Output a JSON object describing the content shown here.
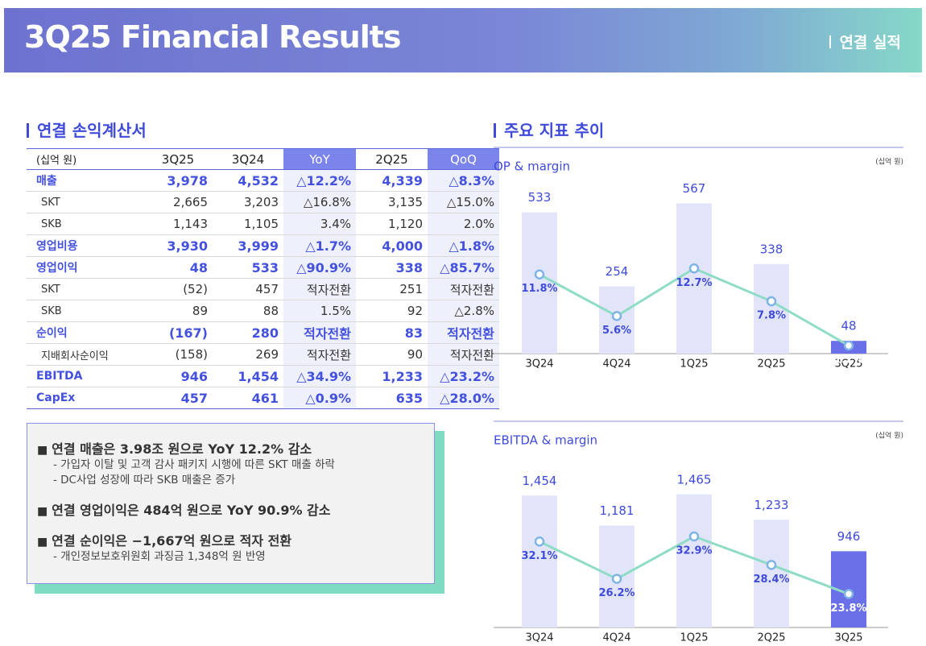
{
  "header": {
    "title": "3Q25 Financial Results",
    "section": "연결 실적"
  },
  "income_statement": {
    "title": "연결 손익계산서",
    "columns": [
      "(십억 원)",
      "3Q25",
      "3Q24",
      "YoY",
      "2Q25",
      "QoQ"
    ],
    "rows": [
      [
        "매출",
        "3,978",
        "4,532",
        "△12.2%",
        "4,339",
        "△8.3%"
      ],
      [
        "SKT",
        "2,665",
        "3,203",
        "△16.8%",
        "3,135",
        "△15.0%"
      ],
      [
        "SKB",
        "1,143",
        "1,105",
        "3.4%",
        "1,120",
        "2.0%"
      ],
      [
        "영업비용",
        "3,930",
        "3,999",
        "△1.7%",
        "4,000",
        "△1.8%"
      ],
      [
        "영업이익",
        "48",
        "533",
        "△90.9%",
        "338",
        "△85.7%"
      ],
      [
        "SKT",
        "(52)",
        "457",
        "적자전환",
        "251",
        "적자전환"
      ],
      [
        "SKB",
        "89",
        "88",
        "1.5%",
        "92",
        "△2.8%"
      ],
      [
        "순이익",
        "(167)",
        "280",
        "적자전환",
        "83",
        "적자전환"
      ],
      [
        "지배회사순이익",
        "(158)",
        "269",
        "적자전환",
        "90",
        "적자전환"
      ],
      [
        "EBITDA",
        "946",
        "1,454",
        "△34.9%",
        "1,233",
        "△23.2%"
      ],
      [
        "CapEx",
        "457",
        "461",
        "△0.9%",
        "635",
        "△28.0%"
      ]
    ]
  },
  "summary": [
    {
      "text": "연결 매출은 3.98조 원으로 YoY 12.2% 감소",
      "details": [
        "- 가입자 이탈 및 고객 감사 패키지 시행에 따른 SKT 매출 하락",
        "- DC사업 성장에 따라 SKB 매출은 증가"
      ]
    },
    {
      "text": "연결 영업이익은 484억 원으로 YoY 90.9% 감소"
    },
    {
      "text": "연결 순이익은 −1,667억 원으로 적자 전환",
      "details": [
        "- 개인정보보호위원회 과징금 1,348억 원 반영"
      ]
    }
  ],
  "trends_title": "주요 지표 추이",
  "chart_data": [
    {
      "type": "bar",
      "title": "OP & margin",
      "unit": "(십억 원)",
      "categories": [
        "3Q24",
        "4Q24",
        "1Q25",
        "2Q25",
        "3Q25"
      ],
      "ylim": [
        0,
        620
      ],
      "y2lim": [
        0,
        24.5
      ],
      "series": [
        {
          "type": "bar",
          "colors": [
            "#e2e5fa",
            "#e2e5fa",
            "#e2e5fa",
            "#e2e5fa",
            "#6a70e8"
          ],
          "values": [
            533,
            254,
            567,
            338,
            48
          ]
        },
        {
          "type": "line",
          "axis": "y2",
          "color": "#8edcc6",
          "values": [
            11.8,
            5.6,
            12.7,
            7.8,
            1.2
          ],
          "value_labels": [
            "11.8%",
            "5.6%",
            "12.7%",
            "7.8%",
            "1.2%"
          ]
        }
      ]
    },
    {
      "type": "bar",
      "title": "EBITDA & margin",
      "unit": "(십억 원)",
      "categories": [
        "3Q24",
        "4Q24",
        "1Q25",
        "2Q25",
        "3Q25"
      ],
      "ylim": [
        250,
        1750
      ],
      "y2lim": [
        18.5,
        44.5
      ],
      "series": [
        {
          "type": "bar",
          "colors": [
            "#e2e5fa",
            "#e2e5fa",
            "#e2e5fa",
            "#e2e5fa",
            "#6a70e8"
          ],
          "values": [
            1454,
            1181,
            1465,
            1233,
            946
          ],
          "value_labels": [
            "1,454",
            "1,181",
            "1,465",
            "1,233",
            "946"
          ]
        },
        {
          "type": "line",
          "axis": "y2",
          "color": "#8edcc6",
          "values": [
            32.1,
            26.2,
            32.9,
            28.4,
            23.8
          ],
          "value_labels": [
            "32.1%",
            "26.2%",
            "32.9%",
            "28.4%",
            "23.8%"
          ]
        }
      ]
    }
  ]
}
